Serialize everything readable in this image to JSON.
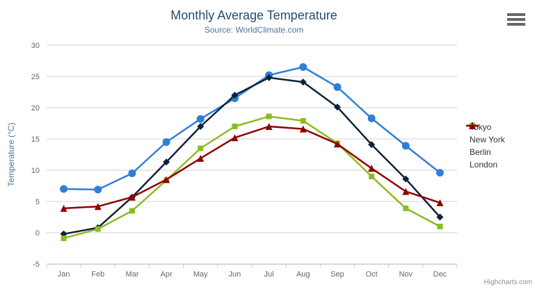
{
  "header": {
    "title": "Monthly Average Temperature",
    "subtitle": "Source: WorldClimate.com"
  },
  "toolbar": {
    "context_menu_icon": "hamburger-icon"
  },
  "credits": {
    "label": "Highcharts.com"
  },
  "colors": {
    "title": "#274b6d",
    "subtitle": "#4d759e",
    "axis_title": "#4d759e",
    "axis_label": "#666666",
    "gridline": "#d0d0d0",
    "x_axis_line": "#c0d0e0",
    "legend_text": "#333333",
    "credits_text": "#909090"
  },
  "chart_data": {
    "type": "line",
    "title": "Monthly Average Temperature",
    "subtitle": "Source: WorldClimate.com",
    "categories": [
      "Jan",
      "Feb",
      "Mar",
      "Apr",
      "May",
      "Jun",
      "Jul",
      "Aug",
      "Sep",
      "Oct",
      "Nov",
      "Dec"
    ],
    "xlabel": "",
    "ylabel": "Temperature (°C)",
    "ylim": [
      -5,
      30
    ],
    "ytick_interval": 5,
    "ytick_labels": [
      "-5",
      "0",
      "5",
      "10",
      "15",
      "20",
      "25",
      "30"
    ],
    "grid": true,
    "legend_position": "right",
    "series": [
      {
        "name": "Tokyo",
        "color": "#2f7ed8",
        "marker": "circle",
        "values": [
          7.0,
          6.9,
          9.5,
          14.5,
          18.2,
          21.5,
          25.2,
          26.5,
          23.3,
          18.3,
          13.9,
          9.6
        ]
      },
      {
        "name": "New York",
        "color": "#0d233a",
        "marker": "diamond",
        "values": [
          -0.2,
          0.8,
          5.7,
          11.3,
          17.0,
          22.0,
          24.8,
          24.1,
          20.1,
          14.1,
          8.6,
          2.5
        ]
      },
      {
        "name": "Berlin",
        "color": "#8bbc21",
        "marker": "square",
        "values": [
          -0.9,
          0.6,
          3.5,
          8.4,
          13.5,
          17.0,
          18.6,
          17.9,
          14.3,
          9.0,
          3.9,
          1.0
        ]
      },
      {
        "name": "London",
        "color": "#910000",
        "marker": "triangle",
        "values": [
          3.9,
          4.2,
          5.7,
          8.5,
          11.9,
          15.2,
          17.0,
          16.6,
          14.2,
          10.3,
          6.6,
          4.8
        ]
      }
    ]
  }
}
